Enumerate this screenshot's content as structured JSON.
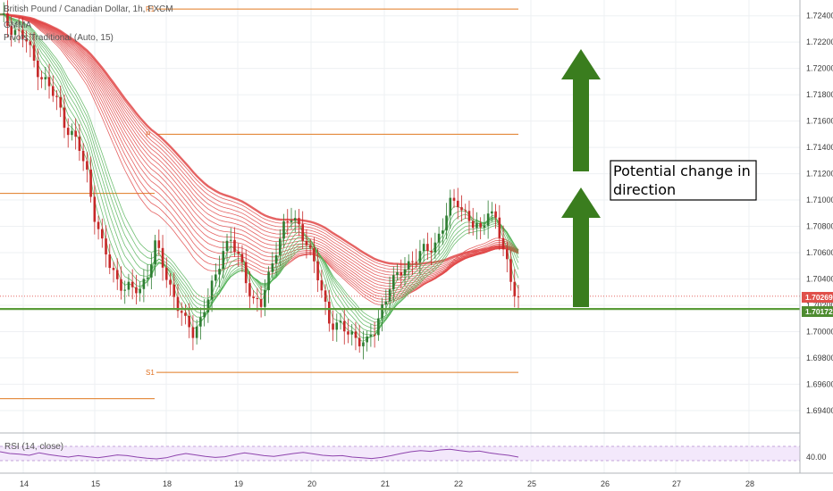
{
  "chart_data": {
    "type": "candlestick",
    "title": "British Pound / Canadian Dollar, 1h, FXCM",
    "legend": [
      "GMMA",
      "Pivots Traditional (Auto, 15)"
    ],
    "rsi_label": "RSI (14, close)",
    "rsi_tick": "40.00",
    "y_ticks": [
      "1.72400",
      "1.72200",
      "1.72000",
      "1.71800",
      "1.71600",
      "1.71400",
      "1.71200",
      "1.71000",
      "1.70800",
      "1.70600",
      "1.70400",
      "1.70200",
      "1.70000",
      "1.69800",
      "1.69600",
      "1.69400"
    ],
    "y_tick_values": [
      1.724,
      1.722,
      1.72,
      1.718,
      1.716,
      1.714,
      1.712,
      1.71,
      1.708,
      1.706,
      1.704,
      1.702,
      1.7,
      1.698,
      1.696,
      1.694
    ],
    "x_ticks": [
      "14",
      "15",
      "18",
      "19",
      "20",
      "21",
      "22",
      "25",
      "26",
      "27",
      "28"
    ],
    "ylim": [
      1.6925,
      1.7252
    ],
    "current_price": {
      "value": 1.70269,
      "label": "1.70269",
      "color": "#e0504a"
    },
    "support_line": {
      "value": 1.70172,
      "label": "1.70172",
      "color": "#5b9c3a"
    },
    "pivots": [
      {
        "name": "R1",
        "value": 1.72451
      },
      {
        "name": "P",
        "value": 1.715
      },
      {
        "name": "",
        "value": 1.7105
      },
      {
        "name": "S1",
        "value": 1.6969
      },
      {
        "name": "",
        "value": 1.6949
      }
    ],
    "annotation": "Potential change in direction",
    "price_path": [
      [
        0,
        1.7238
      ],
      [
        4,
        1.723
      ],
      [
        7,
        1.722
      ],
      [
        9,
        1.7205
      ],
      [
        11,
        1.7195
      ],
      [
        13,
        1.7185
      ],
      [
        15,
        1.7175
      ],
      [
        17,
        1.716
      ],
      [
        19,
        1.715
      ],
      [
        21,
        1.7138
      ],
      [
        23,
        1.712
      ],
      [
        25,
        1.709
      ],
      [
        27,
        1.7065
      ],
      [
        29,
        1.705
      ],
      [
        31,
        1.704
      ],
      [
        33,
        1.7034
      ],
      [
        35,
        1.703
      ],
      [
        37,
        1.7033
      ],
      [
        39,
        1.7045
      ],
      [
        41,
        1.7065
      ],
      [
        43,
        1.705
      ],
      [
        45,
        1.7035
      ],
      [
        47,
        1.702
      ],
      [
        49,
        1.7005
      ],
      [
        51,
        1.7
      ],
      [
        53,
        1.701
      ],
      [
        55,
        1.7025
      ],
      [
        57,
        1.704
      ],
      [
        59,
        1.7065
      ],
      [
        61,
        1.707
      ],
      [
        63,
        1.7055
      ],
      [
        65,
        1.704
      ],
      [
        67,
        1.7025
      ],
      [
        69,
        1.702
      ],
      [
        71,
        1.704
      ],
      [
        73,
        1.7065
      ],
      [
        75,
        1.708
      ],
      [
        77,
        1.7085
      ],
      [
        79,
        1.708
      ],
      [
        81,
        1.707
      ],
      [
        83,
        1.705
      ],
      [
        85,
        1.703
      ],
      [
        87,
        1.701
      ],
      [
        89,
        1.7005
      ],
      [
        91,
        1.7
      ],
      [
        93,
        1.6998
      ],
      [
        95,
        1.6995
      ],
      [
        97,
        1.699
      ],
      [
        99,
        1.7
      ],
      [
        101,
        1.702
      ],
      [
        103,
        1.7035
      ],
      [
        105,
        1.704
      ],
      [
        107,
        1.705
      ],
      [
        109,
        1.7055
      ],
      [
        111,
        1.7058
      ],
      [
        113,
        1.7062
      ],
      [
        115,
        1.7068
      ],
      [
        117,
        1.708
      ],
      [
        119,
        1.7095
      ],
      [
        121,
        1.71
      ],
      [
        123,
        1.709
      ],
      [
        125,
        1.708
      ],
      [
        127,
        1.7075
      ],
      [
        129,
        1.7095
      ],
      [
        131,
        1.7085
      ],
      [
        133,
        1.706
      ],
      [
        135,
        1.704
      ],
      [
        137,
        1.7027
      ]
    ],
    "rsi_values": [
      55,
      50,
      48,
      45,
      52,
      47,
      43,
      40,
      44,
      41,
      38,
      42,
      46,
      44,
      40,
      37,
      35,
      38,
      45,
      50,
      46,
      42,
      39,
      41,
      47,
      52,
      48,
      44,
      42,
      46,
      50,
      53,
      49,
      45,
      43,
      44,
      40,
      38,
      36,
      39,
      44,
      50,
      55,
      58,
      56,
      60,
      62,
      58,
      55,
      57,
      52,
      48,
      45,
      40
    ],
    "colors": {
      "up": "#2e7d32",
      "down": "#c62828",
      "ribbon_long": "#e04848",
      "ribbon_short": "#4caf50",
      "arrow": "#3a7d1e"
    }
  }
}
